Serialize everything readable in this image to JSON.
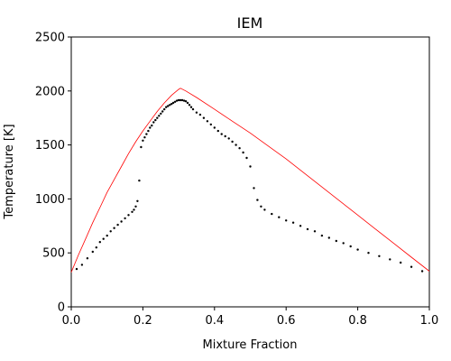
{
  "chart_data": {
    "type": "scatter",
    "title": "IEM",
    "xlabel": "Mixture Fraction",
    "ylabel": "Temperature [K]",
    "xlim": [
      0.0,
      1.0
    ],
    "ylim": [
      0,
      2500
    ],
    "xticks": [
      "0.0",
      "0.2",
      "0.4",
      "0.6",
      "0.8",
      "1.0"
    ],
    "yticks": [
      "0",
      "500",
      "1000",
      "1500",
      "2000",
      "2500"
    ],
    "grid": false,
    "line_color": "#ff0000",
    "point_color": "#000000",
    "series": [
      {
        "kind": "line",
        "x": [
          0.0,
          0.02,
          0.04,
          0.06,
          0.08,
          0.1,
          0.12,
          0.14,
          0.16,
          0.18,
          0.2,
          0.22,
          0.24,
          0.26,
          0.28,
          0.3,
          0.305,
          0.32,
          0.35,
          0.4,
          0.45,
          0.5,
          0.55,
          0.6,
          0.65,
          0.7,
          0.75,
          0.8,
          0.85,
          0.9,
          0.95,
          1.0
        ],
        "y": [
          320,
          480,
          630,
          780,
          920,
          1060,
          1180,
          1300,
          1420,
          1530,
          1630,
          1720,
          1810,
          1890,
          1960,
          2015,
          2025,
          2000,
          1940,
          1830,
          1720,
          1610,
          1490,
          1370,
          1240,
          1110,
          980,
          850,
          720,
          590,
          460,
          330
        ]
      },
      {
        "kind": "points",
        "x": [
          0.015,
          0.03,
          0.045,
          0.06,
          0.07,
          0.08,
          0.09,
          0.1,
          0.11,
          0.12,
          0.13,
          0.14,
          0.15,
          0.16,
          0.17,
          0.175,
          0.18,
          0.185,
          0.19,
          0.195,
          0.2,
          0.205,
          0.21,
          0.215,
          0.22,
          0.225,
          0.23,
          0.235,
          0.24,
          0.245,
          0.25,
          0.255,
          0.26,
          0.265,
          0.27,
          0.275,
          0.28,
          0.285,
          0.29,
          0.295,
          0.3,
          0.305,
          0.31,
          0.315,
          0.32,
          0.325,
          0.33,
          0.335,
          0.34,
          0.35,
          0.36,
          0.37,
          0.38,
          0.39,
          0.4,
          0.41,
          0.42,
          0.43,
          0.44,
          0.45,
          0.46,
          0.47,
          0.48,
          0.49,
          0.5,
          0.51,
          0.52,
          0.53,
          0.54,
          0.56,
          0.58,
          0.6,
          0.62,
          0.64,
          0.66,
          0.68,
          0.7,
          0.72,
          0.74,
          0.76,
          0.78,
          0.8,
          0.83,
          0.86,
          0.89,
          0.92,
          0.95,
          0.98
        ],
        "y": [
          350,
          390,
          450,
          510,
          550,
          600,
          630,
          660,
          700,
          730,
          760,
          790,
          820,
          850,
          880,
          900,
          930,
          980,
          1170,
          1480,
          1540,
          1570,
          1600,
          1630,
          1660,
          1680,
          1710,
          1730,
          1750,
          1770,
          1790,
          1810,
          1830,
          1850,
          1860,
          1870,
          1880,
          1890,
          1900,
          1910,
          1915,
          1915,
          1915,
          1910,
          1905,
          1890,
          1870,
          1850,
          1830,
          1800,
          1780,
          1750,
          1720,
          1690,
          1660,
          1630,
          1600,
          1580,
          1560,
          1530,
          1500,
          1470,
          1430,
          1380,
          1300,
          1100,
          990,
          930,
          900,
          860,
          830,
          800,
          780,
          750,
          720,
          700,
          660,
          640,
          610,
          590,
          560,
          530,
          500,
          470,
          440,
          410,
          370,
          330
        ]
      }
    ]
  }
}
